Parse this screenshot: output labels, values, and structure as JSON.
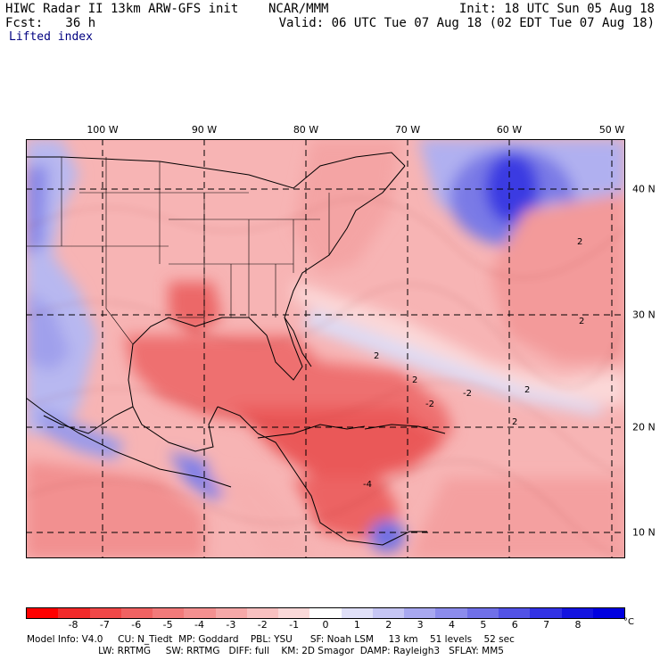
{
  "header": {
    "title": "HIWC Radar II 13km ARW-GFS init    NCAR/MMM",
    "forecast": "Fcst:   36 h",
    "field": "Lifted index",
    "init": "Init: 18 UTC Sun 05 Aug 18",
    "valid": "Valid: 06 UTC Tue 07 Aug 18 (02 EDT Tue 07 Aug 18)"
  },
  "map": {
    "longitudes": [
      "100 W",
      "90 W",
      "80 W",
      "70 W",
      "60 W",
      "50 W"
    ],
    "latitudes": [
      "40 N",
      "30 N",
      "20 N",
      "10 N"
    ],
    "contour_labels": [
      "2",
      "2",
      "2",
      "-2",
      "-2",
      "-4",
      "2",
      "2",
      "2"
    ],
    "colors": {
      "land_warm": "#f4a0a0",
      "strong_unstable": "#ea5a5a",
      "stable_blue": "#7a7ae6",
      "deep_blue": "#2a2ae0",
      "near_zero": "#fbe2e2"
    }
  },
  "colorbar": {
    "labels": [
      "-8",
      "-7",
      "-6",
      "-5",
      "-4",
      "-3",
      "-2",
      "-1",
      "0",
      "1",
      "2",
      "3",
      "4",
      "5",
      "6",
      "7",
      "8"
    ],
    "unit": "°C",
    "colors": [
      "#ff0000",
      "#f22a2a",
      "#f04848",
      "#f06262",
      "#f27a7a",
      "#f49090",
      "#f6a8a8",
      "#f8c0c0",
      "#fad8d8",
      "#ffffff",
      "#e0e0f8",
      "#c6c6f4",
      "#a8a8f0",
      "#8c8cec",
      "#7070e8",
      "#5252e6",
      "#3232e4",
      "#1414e0",
      "#0000e0"
    ]
  },
  "footer": {
    "line1": "Model Info: V4.0     CU: N_Tiedt  MP: Goddard    PBL: YSU      SF: Noah LSM     13 km    51 levels    52 sec",
    "line2": "                        LW: RRTMG     SW: RRTMG   DIFF: full    KM: 2D Smagor  DAMP: Rayleigh3   SFLAY: MM5"
  }
}
